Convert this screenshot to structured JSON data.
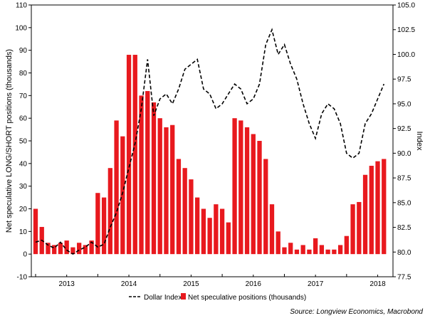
{
  "chart_data": {
    "type": "bar+line",
    "xlabel": "",
    "ylabel_left": "Net speculative LONG/SHORT positions (thousands)",
    "ylabel_right": "Index",
    "x_ticks": [
      "2013",
      "2014",
      "2015",
      "2016",
      "2017",
      "2018"
    ],
    "x_range": [
      2013.0,
      2018.62
    ],
    "ylim_left": [
      -10,
      110
    ],
    "y_ticks_left": [
      "-10",
      "0",
      "10",
      "20",
      "30",
      "40",
      "50",
      "60",
      "70",
      "80",
      "90",
      "100",
      "110"
    ],
    "ylim_right": [
      77.5,
      105.0
    ],
    "y_ticks_right": [
      "77.5",
      "80.0",
      "82.5",
      "85.0",
      "87.5",
      "90.0",
      "92.5",
      "95.0",
      "97.5",
      "100.0",
      "102.5",
      "105.0"
    ],
    "legend": {
      "placement": "bottom-center",
      "entries": [
        "Dollar Index",
        "Net speculative positions (thousands)"
      ]
    },
    "source": "Source: Longview Economics, Macrobond",
    "series": [
      {
        "name": "Net speculative positions (thousands)",
        "type": "bar",
        "axis": "left",
        "color": "#e8191e",
        "x": [
          2013.0,
          2013.1,
          2013.2,
          2013.3,
          2013.4,
          2013.5,
          2013.6,
          2013.7,
          2013.8,
          2013.9,
          2014.0,
          2014.1,
          2014.2,
          2014.3,
          2014.4,
          2014.5,
          2014.6,
          2014.7,
          2014.8,
          2014.9,
          2015.0,
          2015.1,
          2015.2,
          2015.3,
          2015.4,
          2015.5,
          2015.6,
          2015.7,
          2015.8,
          2015.9,
          2016.0,
          2016.1,
          2016.2,
          2016.3,
          2016.4,
          2016.5,
          2016.6,
          2016.7,
          2016.8,
          2016.9,
          2017.0,
          2017.1,
          2017.2,
          2017.3,
          2017.4,
          2017.5,
          2017.6,
          2017.7,
          2017.8,
          2017.9,
          2018.0,
          2018.1,
          2018.2,
          2018.3,
          2018.4,
          2018.5,
          2018.6
        ],
        "values": [
          20,
          12,
          5,
          4,
          5,
          6,
          3,
          5,
          4,
          6,
          27,
          25,
          38,
          59,
          52,
          88,
          88,
          70,
          72,
          67,
          60,
          56,
          57,
          42,
          38,
          33,
          25,
          20,
          16,
          22,
          20,
          14,
          60,
          59,
          56,
          53,
          50,
          42,
          22,
          10,
          3,
          5,
          2,
          4,
          2,
          7,
          4,
          2,
          2,
          4,
          8,
          22,
          23,
          35,
          39,
          41,
          42
        ]
      },
      {
        "name": "Dollar Index",
        "type": "line",
        "axis": "right",
        "style": "dashed",
        "color": "#000000",
        "x": [
          2013.0,
          2013.1,
          2013.2,
          2013.3,
          2013.4,
          2013.5,
          2013.6,
          2013.7,
          2013.8,
          2013.9,
          2014.0,
          2014.1,
          2014.2,
          2014.3,
          2014.4,
          2014.5,
          2014.6,
          2014.7,
          2014.8,
          2014.9,
          2015.0,
          2015.1,
          2015.2,
          2015.3,
          2015.4,
          2015.5,
          2015.6,
          2015.7,
          2015.8,
          2015.9,
          2016.0,
          2016.1,
          2016.2,
          2016.3,
          2016.4,
          2016.5,
          2016.6,
          2016.7,
          2016.8,
          2016.9,
          2017.0,
          2017.1,
          2017.2,
          2017.3,
          2017.4,
          2017.5,
          2017.6,
          2017.7,
          2017.8,
          2017.9,
          2018.0,
          2018.1,
          2018.2,
          2018.3,
          2018.4,
          2018.5,
          2018.6
        ],
        "values": [
          81.0,
          81.2,
          80.7,
          80.4,
          81.0,
          80.2,
          79.8,
          80.2,
          80.5,
          81.0,
          80.5,
          80.8,
          82.5,
          84.0,
          86.0,
          88.5,
          91.0,
          94.5,
          99.5,
          93.8,
          95.5,
          96.0,
          95.0,
          96.5,
          98.5,
          99.0,
          99.5,
          96.5,
          96.0,
          94.5,
          95.0,
          96.0,
          97.0,
          96.5,
          95.0,
          95.5,
          97.0,
          101.0,
          102.5,
          100.0,
          101.0,
          99.0,
          97.5,
          95.0,
          93.0,
          91.5,
          94.0,
          95.0,
          94.5,
          93.0,
          90.0,
          89.5,
          90.0,
          93.0,
          94.0,
          95.5,
          97.0
        ]
      }
    ]
  }
}
